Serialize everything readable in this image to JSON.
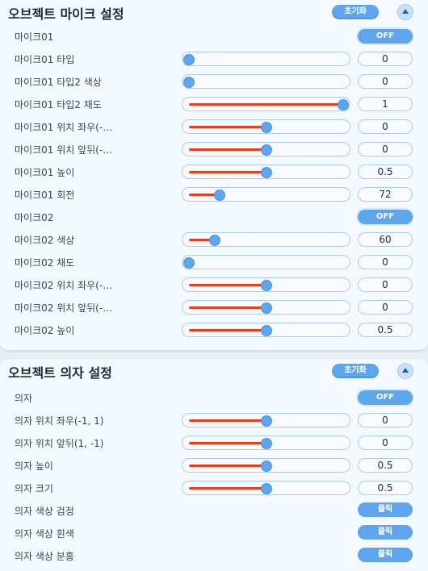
{
  "sections": [
    {
      "title": "오브젝트 마이크 설정",
      "reset_label": "초기화",
      "rows": [
        {
          "label": "마이크01",
          "type": "toggle",
          "value": "OFF"
        },
        {
          "label": "마이크01 타입",
          "type": "slider",
          "value": "0",
          "level": 0
        },
        {
          "label": "마이크01 타입2 색상",
          "type": "slider",
          "value": "0",
          "level": 0
        },
        {
          "label": "마이크01 타입2 채도",
          "type": "slider",
          "value": "1",
          "level": 1
        },
        {
          "label": "마이크01 위치 좌우(-…",
          "type": "slider",
          "value": "0",
          "level": 0.5
        },
        {
          "label": "마이크01 위치 앞뒤(-…",
          "type": "slider",
          "value": "0",
          "level": 0.5
        },
        {
          "label": "마이크01 높이",
          "type": "slider",
          "value": "0.5",
          "level": 0.5
        },
        {
          "label": "마이크01 회전",
          "type": "slider",
          "value": "72",
          "level": 0.2
        },
        {
          "label": "마이크02",
          "type": "toggle",
          "value": "OFF"
        },
        {
          "label": "마이크02 색상",
          "type": "slider",
          "value": "60",
          "level": 0.17
        },
        {
          "label": "마이크02 채도",
          "type": "slider",
          "value": "0",
          "level": 0
        },
        {
          "label": "마이크02 위치 좌우(-…",
          "type": "slider",
          "value": "0",
          "level": 0.5
        },
        {
          "label": "마이크02 위치 앞뒤(-…",
          "type": "slider",
          "value": "0",
          "level": 0.5
        },
        {
          "label": "마이크02 높이",
          "type": "slider",
          "value": "0.5",
          "level": 0.5
        }
      ]
    },
    {
      "title": "오브젝트 의자 설정",
      "reset_label": "초기화",
      "rows": [
        {
          "label": "의자",
          "type": "toggle",
          "value": "OFF"
        },
        {
          "label": "의자 위치 좌우(-1, 1)",
          "type": "slider",
          "value": "0",
          "level": 0.5
        },
        {
          "label": "의자 위치 앞뒤(1, -1)",
          "type": "slider",
          "value": "0",
          "level": 0.5
        },
        {
          "label": "의자 높이",
          "type": "slider",
          "value": "0.5",
          "level": 0.5
        },
        {
          "label": "의자 크기",
          "type": "slider",
          "value": "0.5",
          "level": 0.5
        },
        {
          "label": "의자 색상 검정",
          "type": "button",
          "value": "클릭"
        },
        {
          "label": "의자 색상 흰색",
          "type": "button",
          "value": "클릭"
        },
        {
          "label": "의자 색상 분홍",
          "type": "button",
          "value": "클릭"
        }
      ]
    }
  ],
  "colors": {
    "accent": "#5da6ee",
    "fill": "#e8401a",
    "panel": "#f4f9ff"
  }
}
